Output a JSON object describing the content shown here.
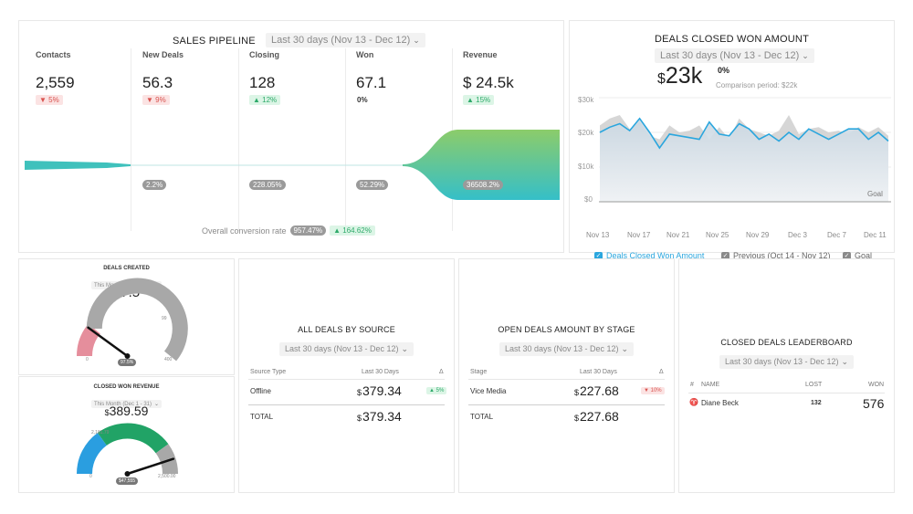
{
  "pipeline": {
    "title": "SALES PIPELINE",
    "period": "Last 30 days (Nov 13 - Dec 12)",
    "columns": [
      {
        "label": "Contacts",
        "value": "2,559",
        "delta": "▼ 5%",
        "dir": "down"
      },
      {
        "label": "New Deals",
        "value": "56.3",
        "delta": "▼ 9%",
        "dir": "down"
      },
      {
        "label": "Closing",
        "value": "128",
        "delta": "▲ 12%",
        "dir": "up"
      },
      {
        "label": "Won",
        "value": "67.1",
        "delta": "0%",
        "dir": "zero"
      },
      {
        "label": "Revenue",
        "value": "$ 24.5k",
        "delta": "▲ 15%",
        "dir": "up"
      }
    ],
    "funnel_rates": [
      "2.2%",
      "228.05%",
      "52.29%",
      "36508.2%"
    ],
    "overall_label": "Overall conversion rate",
    "overall_value": "957.47%",
    "overall_delta": "▲ 164.62%"
  },
  "won_amount": {
    "title": "DEALS CLOSED WON AMOUNT",
    "period": "Last 30 days (Nov 13 - Dec 12)",
    "currency": "$",
    "value": "23k",
    "change": "0%",
    "comparison": "Comparison period: $22k",
    "goal_label": "Goal",
    "legend": {
      "current": "Deals Closed Won Amount",
      "previous": "Previous (Oct 14 - Nov 12)",
      "goal": "Goal"
    }
  },
  "chart_data": {
    "type": "line",
    "x": [
      "Nov 13",
      "Nov 14",
      "Nov 15",
      "Nov 16",
      "Nov 17",
      "Nov 18",
      "Nov 19",
      "Nov 20",
      "Nov 21",
      "Nov 22",
      "Nov 23",
      "Nov 24",
      "Nov 25",
      "Nov 26",
      "Nov 27",
      "Nov 28",
      "Nov 29",
      "Nov 30",
      "Dec 1",
      "Dec 2",
      "Dec 3",
      "Dec 4",
      "Dec 5",
      "Dec 6",
      "Dec 7",
      "Dec 8",
      "Dec 9",
      "Dec 10",
      "Dec 11",
      "Dec 12"
    ],
    "xticks": [
      "Nov 13",
      "Nov 17",
      "Nov 21",
      "Nov 25",
      "Nov 29",
      "Dec 3",
      "Dec 7",
      "Dec 11"
    ],
    "yticks": [
      "$0",
      "$10k",
      "$20k",
      "$30k"
    ],
    "ylim": [
      0,
      30000
    ],
    "series": [
      {
        "name": "Deals Closed Won Amount",
        "values": [
          20000,
          21500,
          22500,
          20500,
          24000,
          20000,
          15500,
          19500,
          19000,
          18500,
          18000,
          23000,
          19500,
          19000,
          22500,
          21000,
          18000,
          19500,
          17500,
          20000,
          18000,
          21000,
          19500,
          18000,
          19500,
          21000,
          21000,
          18000,
          20000,
          17500
        ]
      },
      {
        "name": "Previous (Oct 14 - Nov 12)",
        "values": [
          22000,
          24000,
          25000,
          21000,
          23000,
          19000,
          18000,
          22000,
          20000,
          20500,
          22000,
          18000,
          21500,
          18000,
          24000,
          21000,
          20000,
          19000,
          20500,
          25000,
          19500,
          21000,
          21500,
          20000,
          20500,
          19500,
          21500,
          20000,
          21500,
          19000
        ]
      }
    ],
    "goal": 0
  },
  "deals_created": {
    "title": "DEALS CREATED",
    "period": "This Month (Dec 1 - 31)",
    "value": "97.5",
    "gauge_fraction": 0.2,
    "tick_left": "0",
    "tick_mid": "99",
    "tick_right": "400",
    "pill": "97.5%"
  },
  "won_revenue": {
    "title": "CLOSED WON REVENUE",
    "period": "This Month (Dec 1 - 31)",
    "currency": "$",
    "value": "389.59",
    "gauge_fraction": 0.9,
    "tick_left": "0",
    "tick_right": "2,500.00",
    "tick_mid": "2,181.79",
    "pill": "$47,555"
  },
  "by_source": {
    "title": "ALL DEALS BY SOURCE",
    "period": "Last 30 days (Nov 13 - Dec 12)",
    "headers": [
      "Source Type",
      "Last 30 Days",
      "Δ"
    ],
    "row": {
      "label": "Offline",
      "currency": "$",
      "value": "379.34",
      "delta": "▲ 5%"
    },
    "total": {
      "label": "TOTAL",
      "currency": "$",
      "value": "379.34"
    }
  },
  "by_stage": {
    "title": "OPEN DEALS AMOUNT BY STAGE",
    "period": "Last 30 days (Nov 13 - Dec 12)",
    "headers": [
      "Stage",
      "Last 30 Days",
      "Δ"
    ],
    "row": {
      "label": "Vice Media",
      "currency": "$",
      "value": "227.68",
      "delta": "▼ 10%"
    },
    "total": {
      "label": "TOTAL",
      "currency": "$",
      "value": "227.68"
    }
  },
  "leaderboard": {
    "title": "CLOSED DEALS LEADERBOARD",
    "period": "Last 30 days (Nov 13 - Dec 12)",
    "headers": [
      "#",
      "NAME",
      "LOST",
      "WON"
    ],
    "rows": [
      {
        "name": "Diane Beck",
        "lost": "132",
        "won": "576"
      }
    ]
  },
  "colors": {
    "accent": "#2aa6de",
    "teal": "#3ec1c0",
    "green": "#7cc96a",
    "gauge_gray": "#a8a8a8",
    "gauge_pink": "#e58e9c",
    "gauge_green": "#21a366",
    "gauge_blue": "#2a9ee0"
  }
}
